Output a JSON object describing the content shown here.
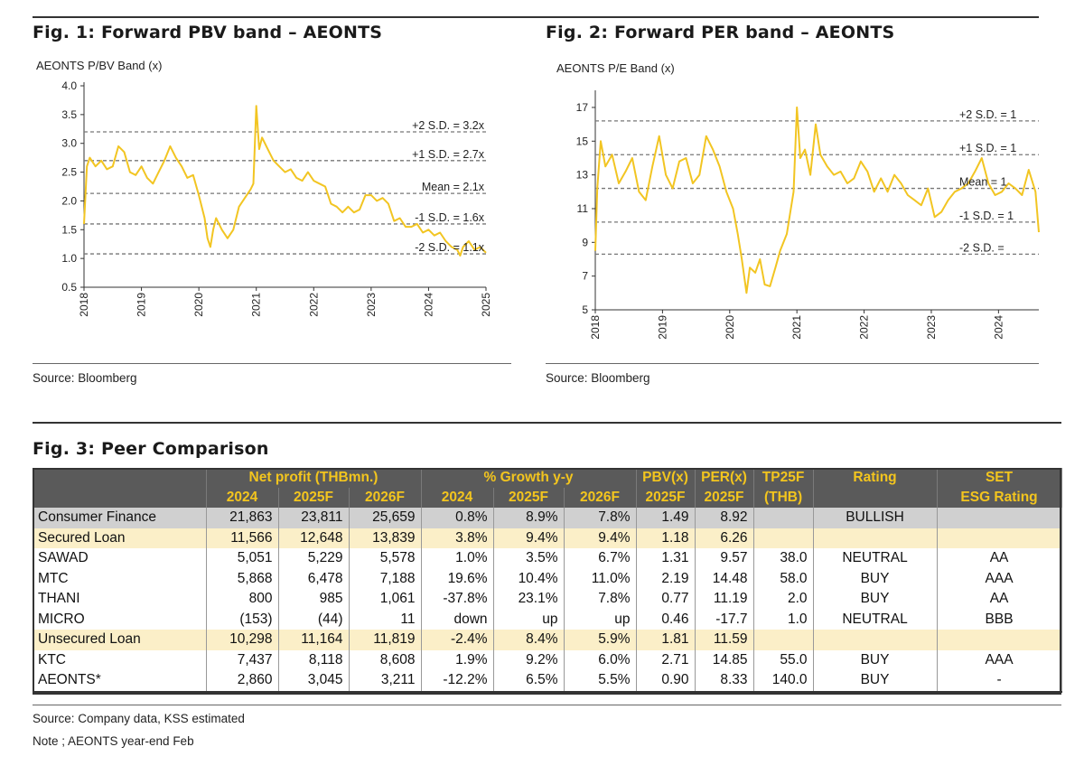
{
  "fig1": {
    "title": "Fig. 1:  Forward PBV band – AEONTS",
    "source": "Source: Bloomberg",
    "chart_data": {
      "type": "line",
      "title": "AEONTS P/BV Band (x)",
      "x_ticks": [
        "2018",
        "2019",
        "2020",
        "2021",
        "2022",
        "2023",
        "2024",
        "2025"
      ],
      "y_ticks": [
        "4.0",
        "3.5",
        "3.0",
        "2.5",
        "2.0",
        "1.5",
        "1.0",
        "0.5"
      ],
      "ylim": [
        0.5,
        4.0
      ],
      "xlim": [
        2018.0,
        2025.0
      ],
      "bands": [
        {
          "label": "+2 S.D. = 3.2x",
          "value": 3.2
        },
        {
          "label": "+1 S.D. = 2.7x",
          "value": 2.7
        },
        {
          "label": "Mean = 2.1x",
          "value": 2.13
        },
        {
          "label": "-1 S.D. = 1.6x",
          "value": 1.6
        },
        {
          "label": "-2 S.D. = 1.1x",
          "value": 1.08
        }
      ],
      "series": [
        {
          "color": "#f2c522",
          "x": [
            2018.0,
            2018.05,
            2018.1,
            2018.2,
            2018.3,
            2018.4,
            2018.5,
            2018.6,
            2018.7,
            2018.8,
            2018.9,
            2019.0,
            2019.1,
            2019.2,
            2019.3,
            2019.4,
            2019.5,
            2019.6,
            2019.7,
            2019.8,
            2019.9,
            2020.0,
            2020.1,
            2020.15,
            2020.2,
            2020.25,
            2020.3,
            2020.4,
            2020.5,
            2020.6,
            2020.7,
            2020.8,
            2020.9,
            2020.95,
            2021.0,
            2021.05,
            2021.1,
            2021.2,
            2021.3,
            2021.4,
            2021.5,
            2021.6,
            2021.7,
            2021.8,
            2021.9,
            2022.0,
            2022.1,
            2022.2,
            2022.3,
            2022.4,
            2022.5,
            2022.6,
            2022.7,
            2022.8,
            2022.9,
            2023.0,
            2023.1,
            2023.2,
            2023.3,
            2023.4,
            2023.5,
            2023.6,
            2023.7,
            2023.8,
            2023.9,
            2024.0,
            2024.1,
            2024.2,
            2024.3,
            2024.4,
            2024.5,
            2024.55,
            2024.6,
            2024.7,
            2024.8,
            2024.9,
            2025.0
          ],
          "y": [
            1.6,
            2.6,
            2.75,
            2.6,
            2.7,
            2.55,
            2.6,
            2.95,
            2.85,
            2.5,
            2.45,
            2.6,
            2.4,
            2.3,
            2.5,
            2.7,
            2.95,
            2.75,
            2.6,
            2.4,
            2.45,
            2.1,
            1.7,
            1.35,
            1.2,
            1.5,
            1.7,
            1.5,
            1.35,
            1.5,
            1.9,
            2.05,
            2.2,
            2.3,
            3.65,
            2.9,
            3.1,
            2.9,
            2.7,
            2.6,
            2.5,
            2.55,
            2.4,
            2.35,
            2.5,
            2.35,
            2.3,
            2.25,
            1.95,
            1.9,
            1.8,
            1.9,
            1.8,
            1.85,
            2.1,
            2.1,
            2.0,
            2.05,
            1.95,
            1.65,
            1.7,
            1.55,
            1.55,
            1.6,
            1.45,
            1.5,
            1.4,
            1.45,
            1.3,
            1.2,
            1.15,
            1.05,
            1.2,
            1.3,
            1.15,
            1.2,
            1.1
          ]
        }
      ]
    }
  },
  "fig2": {
    "title": "Fig. 2: Forward PER band – AEONTS",
    "source": "Source: Bloomberg",
    "chart_data": {
      "type": "line",
      "title": "AEONTS P/E Band (x)",
      "x_ticks": [
        "2018",
        "2019",
        "2020",
        "2021",
        "2022",
        "2023",
        "2024"
      ],
      "y_ticks": [
        "17",
        "15",
        "13",
        "11",
        "9",
        "7",
        "5"
      ],
      "ylim": [
        5,
        17.8
      ],
      "xlim": [
        2018.0,
        2024.6
      ],
      "bands": [
        {
          "label": "+2 S.D. = 1",
          "value": 16.2
        },
        {
          "label": "+1 S.D. = 1",
          "value": 14.2
        },
        {
          "label": "Mean = 1",
          "value": 12.2
        },
        {
          "label": "-1 S.D. = 1",
          "value": 10.2
        },
        {
          "label": "-2 S.D. =",
          "value": 8.3
        }
      ],
      "series": [
        {
          "color": "#f2c522",
          "x": [
            2018.0,
            2018.03,
            2018.08,
            2018.15,
            2018.25,
            2018.35,
            2018.45,
            2018.55,
            2018.65,
            2018.75,
            2018.85,
            2018.95,
            2019.05,
            2019.15,
            2019.25,
            2019.35,
            2019.45,
            2019.55,
            2019.65,
            2019.75,
            2019.85,
            2019.95,
            2020.05,
            2020.12,
            2020.18,
            2020.25,
            2020.3,
            2020.38,
            2020.45,
            2020.52,
            2020.6,
            2020.68,
            2020.75,
            2020.85,
            2020.95,
            2021.0,
            2021.05,
            2021.12,
            2021.2,
            2021.28,
            2021.35,
            2021.45,
            2021.55,
            2021.65,
            2021.75,
            2021.85,
            2021.95,
            2022.05,
            2022.15,
            2022.25,
            2022.35,
            2022.45,
            2022.55,
            2022.65,
            2022.75,
            2022.85,
            2022.95,
            2023.05,
            2023.15,
            2023.25,
            2023.35,
            2023.45,
            2023.55,
            2023.65,
            2023.75,
            2023.85,
            2023.95,
            2024.05,
            2024.15,
            2024.25,
            2024.35,
            2024.45,
            2024.55,
            2024.6
          ],
          "y": [
            8.5,
            12.2,
            15.0,
            13.5,
            14.2,
            12.5,
            13.2,
            14.0,
            12.0,
            11.5,
            13.5,
            15.3,
            13.0,
            12.2,
            13.8,
            14.0,
            12.5,
            13.0,
            15.3,
            14.5,
            13.5,
            12.0,
            11.0,
            9.5,
            8.0,
            6.0,
            7.5,
            7.2,
            8.0,
            6.5,
            6.4,
            7.5,
            8.5,
            9.5,
            12.0,
            17.0,
            14.0,
            14.5,
            13.0,
            16.0,
            14.2,
            13.5,
            13.0,
            13.2,
            12.5,
            12.8,
            13.8,
            13.2,
            12.0,
            12.8,
            12.0,
            13.0,
            12.5,
            11.8,
            11.5,
            11.2,
            12.2,
            10.5,
            10.8,
            11.5,
            12.0,
            12.2,
            12.5,
            13.2,
            14.0,
            12.5,
            11.8,
            12.0,
            12.5,
            12.2,
            11.8,
            13.3,
            12.0,
            9.6
          ]
        }
      ]
    }
  },
  "fig3": {
    "title": "Fig. 3: Peer Comparison",
    "header_row1": [
      "",
      "Net profit (THBmn.)",
      "% Growth y-y",
      "PBV(x)",
      "PER(x)",
      "TP25F",
      "Rating",
      "SET"
    ],
    "header_row2": [
      "",
      "2024",
      "2025F",
      "2026F",
      "2024",
      "2025F",
      "2026F",
      "2025F",
      "2025F",
      "(THB)",
      "",
      "ESG Rating"
    ],
    "rows": [
      {
        "style": "total",
        "cells": [
          "Consumer Finance",
          "21,863",
          "23,811",
          "25,659",
          "0.8%",
          "8.9%",
          "7.8%",
          "1.49",
          "8.92",
          "",
          "BULLISH",
          ""
        ]
      },
      {
        "style": "sub",
        "cells": [
          "Secured Loan",
          "11,566",
          "12,648",
          "13,839",
          "3.8%",
          "9.4%",
          "9.4%",
          "1.18",
          "6.26",
          "",
          "",
          ""
        ]
      },
      {
        "style": "",
        "cells": [
          "SAWAD",
          "5,051",
          "5,229",
          "5,578",
          "1.0%",
          "3.5%",
          "6.7%",
          "1.31",
          "9.57",
          "38.0",
          "NEUTRAL",
          "AA"
        ]
      },
      {
        "style": "",
        "cells": [
          "MTC",
          "5,868",
          "6,478",
          "7,188",
          "19.6%",
          "10.4%",
          "11.0%",
          "2.19",
          "14.48",
          "58.0",
          "BUY",
          "AAA"
        ]
      },
      {
        "style": "",
        "cells": [
          "THANI",
          "800",
          "985",
          "1,061",
          "-37.8%",
          "23.1%",
          "7.8%",
          "0.77",
          "11.19",
          "2.0",
          "BUY",
          "AA"
        ]
      },
      {
        "style": "",
        "cells": [
          "MICRO",
          "(153)",
          "(44)",
          "11",
          "down",
          "up",
          "up",
          "0.46",
          "-17.7",
          "1.0",
          "NEUTRAL",
          "BBB"
        ]
      },
      {
        "style": "sub",
        "cells": [
          "Unsecured Loan",
          "10,298",
          "11,164",
          "11,819",
          "-2.4%",
          "8.4%",
          "5.9%",
          "1.81",
          "11.59",
          "",
          "",
          ""
        ]
      },
      {
        "style": "",
        "cells": [
          "KTC",
          "7,437",
          "8,118",
          "8,608",
          "1.9%",
          "9.2%",
          "6.0%",
          "2.71",
          "14.85",
          "55.0",
          "BUY",
          "AAA"
        ]
      },
      {
        "style": "last",
        "cells": [
          "AEONTS*",
          "2,860",
          "3,045",
          "3,211",
          "-12.2%",
          "6.5%",
          "5.5%",
          "0.90",
          "8.33",
          "140.0",
          "BUY",
          "-"
        ]
      }
    ],
    "source": "Source: Company data, KSS estimated",
    "note": "Note ; AEONTS year-end Feb"
  },
  "colors": {
    "line": "#f2c522",
    "header_bg": "#5a5a5a",
    "header_text": "#f3c51e",
    "total_bg": "#d0d0d0",
    "sub_bg": "#fbefc8"
  }
}
